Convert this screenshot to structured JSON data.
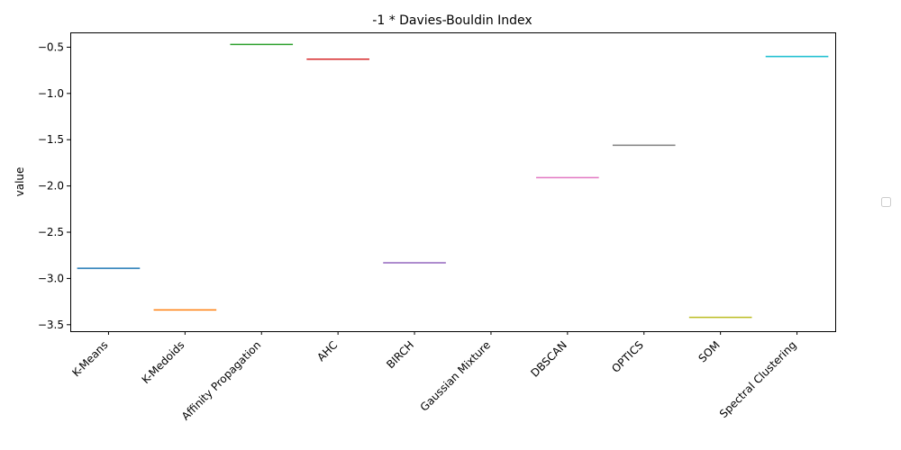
{
  "chart_data": {
    "type": "line",
    "title": "-1 * Davies-Bouldin Index",
    "xlabel": "",
    "ylabel": "value",
    "categories": [
      "K-Means",
      "K-Medoids",
      "Affinity Propagation",
      "AHC",
      "BIRCH",
      "Gaussian Mixture",
      "DBSCAN",
      "OPTICS",
      "SOM",
      "Spectral Clustering"
    ],
    "values": [
      -2.89,
      -3.34,
      -0.47,
      -0.63,
      -2.83,
      null,
      -1.91,
      -1.56,
      -3.42,
      -0.6
    ],
    "colors": [
      "#1f77b4",
      "#ff7f0e",
      "#2ca02c",
      "#d62728",
      "#9467bd",
      "#8c564b",
      "#e377c2",
      "#7f7f7f",
      "#bcbd22",
      "#17becf"
    ],
    "ylim": [
      -3.57,
      -0.34
    ],
    "yticks": [
      -3.5,
      -3.0,
      -2.5,
      -2.0,
      -1.5,
      -1.0,
      -0.5
    ],
    "ytick_labels": [
      "−3.5",
      "−3.0",
      "−2.5",
      "−2.0",
      "−1.5",
      "−1.0",
      "−0.5"
    ],
    "grid": false,
    "legend": "right, empty"
  }
}
